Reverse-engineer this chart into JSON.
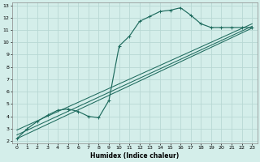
{
  "xlabel": "Humidex (Indice chaleur)",
  "xlim": [
    -0.5,
    23.5
  ],
  "ylim": [
    1.8,
    13.2
  ],
  "xticks": [
    0,
    1,
    2,
    3,
    4,
    5,
    6,
    7,
    8,
    9,
    10,
    11,
    12,
    13,
    14,
    15,
    16,
    17,
    18,
    19,
    20,
    21,
    22,
    23
  ],
  "yticks": [
    2,
    3,
    4,
    5,
    6,
    7,
    8,
    9,
    10,
    11,
    12,
    13
  ],
  "bg_color": "#d4eeea",
  "grid_color": "#b8d8d4",
  "line_color": "#1e6b5e",
  "curve_x": [
    0,
    1,
    2,
    3,
    4,
    5,
    6,
    7,
    8,
    9,
    10,
    11,
    12,
    13,
    14,
    15,
    16,
    17,
    18,
    19,
    20,
    21,
    22,
    23
  ],
  "curve_y": [
    2.2,
    3.0,
    3.6,
    4.1,
    4.5,
    4.6,
    4.4,
    4.0,
    3.9,
    5.3,
    9.7,
    10.5,
    11.7,
    12.1,
    12.5,
    12.6,
    12.8,
    12.2,
    11.5,
    11.2,
    11.2,
    11.2,
    11.2,
    11.2
  ],
  "straight_lines": [
    {
      "x": [
        0,
        23
      ],
      "y": [
        2.2,
        11.15
      ]
    },
    {
      "x": [
        0,
        23
      ],
      "y": [
        2.5,
        11.3
      ]
    },
    {
      "x": [
        0,
        23
      ],
      "y": [
        2.9,
        11.5
      ]
    }
  ]
}
